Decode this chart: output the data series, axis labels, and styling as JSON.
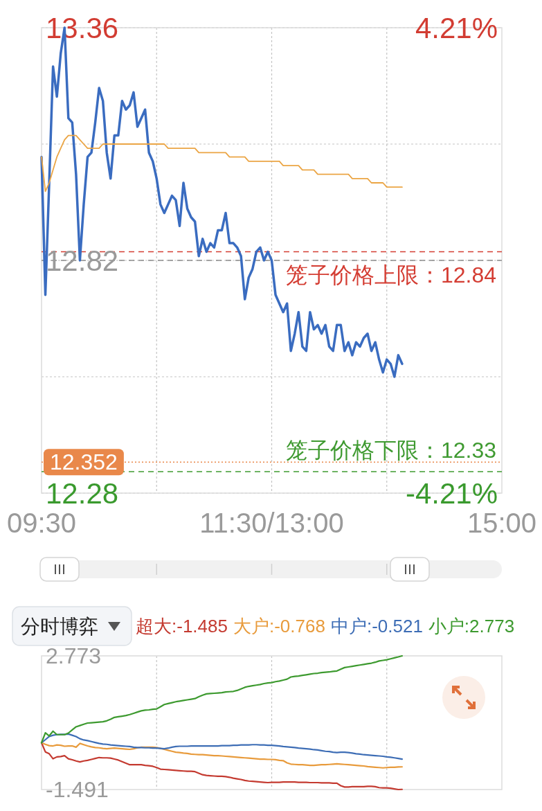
{
  "chart_data": [
    {
      "type": "line",
      "categories": [
        "09:30",
        null,
        null,
        null,
        null,
        null,
        null,
        null,
        null,
        null,
        null,
        null,
        null,
        null,
        null,
        null,
        null,
        null,
        null,
        null,
        null,
        null,
        null,
        null,
        null,
        null,
        null,
        null,
        null,
        null,
        null,
        null,
        null,
        null,
        null,
        null,
        null,
        null,
        null,
        null,
        null,
        null,
        null,
        null,
        null,
        null,
        null,
        null,
        null,
        null,
        null,
        null,
        null,
        null,
        null,
        null,
        null,
        null,
        null,
        null,
        "11:30/13:00",
        null,
        null,
        null,
        null,
        null,
        null,
        null,
        null,
        null,
        null,
        null,
        null,
        null,
        null,
        null,
        null,
        null,
        null,
        null,
        null,
        null,
        null,
        null,
        null,
        null,
        null,
        null,
        null,
        null,
        null,
        null,
        null,
        null,
        null,
        null,
        null,
        null,
        null,
        null,
        null,
        null,
        null,
        null,
        null,
        null,
        null,
        null,
        null,
        null,
        null,
        null,
        null,
        null,
        null,
        null,
        null,
        null,
        null,
        null,
        "15:00"
      ],
      "series": [
        {
          "color": "#3a6cc0",
          "values": [
            13.06,
            12.74,
            13.0,
            13.27,
            13.2,
            13.3,
            13.36,
            13.15,
            13.14,
            13.02,
            12.82,
            12.95,
            13.06,
            13.07,
            13.14,
            13.22,
            13.19,
            13.07,
            13.01,
            13.11,
            13.11,
            13.19,
            13.17,
            13.18,
            13.21,
            13.13,
            13.15,
            13.17,
            13.07,
            13.05,
            13.01,
            12.95,
            12.93,
            12.95,
            12.97,
            12.96,
            12.9,
            13.0,
            12.94,
            12.92,
            12.91,
            12.83,
            12.87,
            12.84,
            12.86,
            12.85,
            12.89,
            12.89,
            12.93,
            12.86,
            12.86,
            12.85,
            12.83,
            12.73,
            12.78,
            12.8,
            12.84,
            12.85,
            12.82,
            12.84,
            12.82,
            12.74,
            12.72,
            12.7,
            12.72,
            12.61,
            12.65,
            12.7,
            12.62,
            12.61,
            12.7,
            12.66,
            12.67,
            12.65,
            12.67,
            12.62,
            12.61,
            12.67,
            12.67,
            12.61,
            12.63,
            12.6,
            12.63,
            12.62,
            12.64,
            12.65,
            12.61,
            12.63,
            12.59,
            12.56,
            12.59,
            12.58,
            12.55,
            12.6,
            12.58,
            null,
            null,
            null,
            null,
            null,
            null,
            null,
            null,
            null,
            null,
            null,
            null,
            null,
            null,
            null,
            null,
            null,
            null,
            null,
            null,
            null,
            null,
            null,
            null,
            null,
            null
          ]
        },
        {
          "color": "#eba544",
          "values": [
            13.06,
            12.98,
            13.0,
            13.03,
            13.06,
            13.08,
            13.1,
            13.11,
            13.11,
            13.11,
            13.1,
            13.09,
            13.08,
            13.08,
            13.08,
            13.08,
            13.09,
            13.09,
            13.09,
            13.09,
            13.09,
            13.09,
            13.09,
            13.09,
            13.09,
            13.09,
            13.09,
            13.09,
            13.09,
            13.09,
            13.09,
            13.09,
            13.09,
            13.08,
            13.08,
            13.08,
            13.08,
            13.08,
            13.08,
            13.08,
            13.08,
            13.07,
            13.07,
            13.07,
            13.07,
            13.07,
            13.07,
            13.07,
            13.07,
            13.06,
            13.06,
            13.06,
            13.06,
            13.06,
            13.05,
            13.05,
            13.05,
            13.05,
            13.05,
            13.05,
            13.05,
            13.05,
            13.05,
            13.04,
            13.04,
            13.04,
            13.04,
            13.04,
            13.03,
            13.03,
            13.03,
            13.03,
            13.02,
            13.02,
            13.02,
            13.02,
            13.02,
            13.02,
            13.02,
            13.02,
            13.02,
            13.01,
            13.01,
            13.01,
            13.01,
            13.01,
            13.0,
            13.0,
            13.0,
            13.0,
            12.99,
            12.99,
            12.99,
            12.99,
            12.99,
            null,
            null,
            null,
            null,
            null,
            null,
            null,
            null,
            null,
            null,
            null,
            null,
            null,
            null,
            null,
            null,
            null,
            null,
            null,
            null,
            null,
            null,
            null,
            null,
            null,
            null
          ]
        }
      ],
      "ylim": [
        12.28,
        13.36
      ],
      "yticks": [
        13.36,
        {
          "value": 13.09,
          "label": null
        },
        12.82,
        {
          "value": 12.55,
          "label": null
        },
        12.28
      ],
      "y2lim": [
        -4.21,
        4.21
      ],
      "y2ticks": [
        {
          "value": 4.21,
          "label": "4.21%"
        },
        {
          "value": -4.21,
          "label": "-4.21%"
        }
      ],
      "grid": true,
      "ref_lines": [
        {
          "axis": "y",
          "value": 12.84,
          "label": "笼子价格上限：12.84",
          "color": "#d43d33",
          "line_style": "dashed"
        },
        {
          "axis": "y",
          "value": 12.82,
          "color": "#8c8c8c",
          "line_style": "dashed"
        },
        {
          "axis": "y",
          "value": 12.352,
          "label": "12.352",
          "color": "#e9884a",
          "line_style": "dotted"
        },
        {
          "axis": "y",
          "value": 12.33,
          "label": "笼子价格下限：12.33",
          "color": "#3f9a31",
          "line_style": "dashed"
        }
      ]
    },
    {
      "type": "line",
      "title": "分时博弈",
      "categories": [
        null,
        null,
        null,
        null,
        null,
        null,
        null,
        null,
        null,
        null,
        null,
        null,
        null,
        null,
        null,
        null,
        null,
        null,
        null,
        null,
        null,
        null,
        null,
        null,
        null,
        null,
        null,
        null,
        null,
        null,
        null,
        null,
        null,
        null,
        null,
        null,
        null,
        null,
        null,
        null,
        null,
        null,
        null,
        null,
        null,
        null,
        null,
        null,
        null,
        null,
        null,
        null,
        null,
        null,
        null,
        null,
        null,
        null,
        null,
        null,
        null,
        null,
        null,
        null,
        null,
        null,
        null,
        null,
        null,
        null,
        null,
        null,
        null,
        null,
        null,
        null,
        null,
        null,
        null,
        null,
        null,
        null,
        null,
        null,
        null,
        null,
        null,
        null,
        null,
        null,
        null,
        null,
        null,
        null,
        null,
        null,
        null,
        null,
        null,
        null,
        null,
        null,
        null,
        null,
        null,
        null,
        null,
        null,
        null,
        null,
        null,
        null,
        null,
        null,
        null,
        null,
        null,
        null,
        null,
        null,
        null
      ],
      "series": [
        {
          "name": "超大:-1.485",
          "color": "#c43a30",
          "values": [
            0,
            -0.29,
            -0.35,
            -0.51,
            -0.45,
            -0.44,
            -0.41,
            -0.51,
            -0.54,
            -0.58,
            -0.61,
            -0.58,
            -0.56,
            -0.53,
            -0.5,
            -0.47,
            -0.48,
            -0.48,
            -0.49,
            -0.52,
            -0.55,
            -0.6,
            -0.65,
            -0.7,
            -0.7,
            -0.7,
            -0.7,
            -0.72,
            -0.73,
            -0.75,
            -0.79,
            -0.84,
            -0.85,
            -0.86,
            -0.87,
            -0.88,
            -0.89,
            -0.9,
            -0.91,
            -0.91,
            -0.92,
            -0.97,
            -1.02,
            -1.04,
            -1.05,
            -1.06,
            -1.07,
            -1.07,
            -1.08,
            -1.1,
            -1.13,
            -1.15,
            -1.17,
            -1.2,
            -1.22,
            -1.23,
            -1.24,
            -1.25,
            -1.26,
            -1.27,
            -1.26,
            -1.26,
            -1.26,
            -1.25,
            -1.25,
            -1.25,
            -1.25,
            -1.26,
            -1.26,
            -1.26,
            -1.27,
            -1.27,
            -1.27,
            -1.28,
            -1.28,
            -1.28,
            -1.29,
            -1.29,
            -1.37,
            -1.41,
            -1.41,
            -1.4,
            -1.4,
            -1.4,
            -1.4,
            -1.39,
            -1.39,
            -1.4,
            -1.43,
            -1.44,
            -1.44,
            -1.45,
            -1.47,
            -1.491,
            -1.485,
            null,
            null,
            null,
            null,
            null,
            null,
            null,
            null,
            null,
            null,
            null,
            null,
            null,
            null,
            null,
            null,
            null,
            null,
            null,
            null,
            null,
            null,
            null,
            null,
            null,
            null
          ]
        },
        {
          "name": "大户:-0.768",
          "color": "#e89b3c",
          "values": [
            0,
            -0.05,
            -0.09,
            -0.1,
            -0.07,
            -0.08,
            -0.11,
            -0.1,
            -0.1,
            -0.14,
            -0.02,
            -0.06,
            -0.1,
            -0.13,
            -0.15,
            -0.16,
            -0.18,
            -0.19,
            -0.18,
            -0.17,
            -0.18,
            -0.19,
            -0.2,
            -0.21,
            -0.19,
            -0.16,
            -0.14,
            -0.14,
            -0.14,
            -0.14,
            -0.15,
            -0.18,
            -0.21,
            -0.24,
            -0.27,
            -0.3,
            -0.31,
            -0.33,
            -0.34,
            -0.36,
            -0.37,
            -0.38,
            -0.38,
            -0.39,
            -0.4,
            -0.41,
            -0.41,
            -0.42,
            -0.43,
            -0.44,
            -0.45,
            -0.46,
            -0.47,
            -0.48,
            -0.49,
            -0.5,
            -0.51,
            -0.52,
            -0.52,
            -0.53,
            -0.53,
            -0.54,
            -0.56,
            -0.57,
            -0.64,
            -0.68,
            -0.69,
            -0.7,
            -0.7,
            -0.71,
            -0.72,
            -0.72,
            -0.71,
            -0.7,
            -0.7,
            -0.69,
            -0.68,
            -0.67,
            -0.68,
            -0.69,
            -0.7,
            -0.71,
            -0.72,
            -0.73,
            -0.74,
            -0.76,
            -0.77,
            -0.78,
            -0.79,
            -0.8,
            -0.79,
            -0.78,
            -0.78,
            -0.77,
            -0.768,
            null,
            null,
            null,
            null,
            null,
            null,
            null,
            null,
            null,
            null,
            null,
            null,
            null,
            null,
            null,
            null,
            null,
            null,
            null,
            null,
            null,
            null,
            null,
            null,
            null,
            null
          ]
        },
        {
          "name": "中户:-0.521",
          "color": "#3d6db5",
          "values": [
            0,
            0.1,
            0.2,
            0.24,
            0.26,
            0.27,
            0.27,
            0.28,
            0.24,
            0.2,
            0.13,
            0.09,
            0.07,
            0.04,
            0.01,
            -0.02,
            -0.04,
            -0.05,
            -0.07,
            -0.08,
            -0.09,
            -0.1,
            -0.11,
            -0.12,
            -0.14,
            -0.15,
            -0.15,
            -0.16,
            -0.16,
            -0.17,
            -0.17,
            -0.18,
            -0.19,
            -0.17,
            -0.14,
            -0.12,
            -0.11,
            -0.11,
            -0.11,
            -0.1,
            -0.1,
            -0.1,
            -0.1,
            -0.1,
            -0.1,
            -0.1,
            -0.1,
            -0.09,
            -0.09,
            -0.09,
            -0.08,
            -0.08,
            -0.07,
            -0.07,
            -0.07,
            -0.06,
            -0.06,
            -0.07,
            -0.07,
            -0.08,
            -0.08,
            -0.09,
            -0.1,
            -0.12,
            -0.13,
            -0.14,
            -0.15,
            -0.17,
            -0.18,
            -0.19,
            -0.2,
            -0.22,
            -0.23,
            -0.25,
            -0.27,
            -0.28,
            -0.3,
            -0.31,
            -0.3,
            -0.3,
            -0.31,
            -0.33,
            -0.35,
            -0.36,
            -0.38,
            -0.39,
            -0.4,
            -0.41,
            -0.42,
            -0.43,
            -0.45,
            -0.46,
            -0.48,
            -0.5,
            -0.521,
            null,
            null,
            null,
            null,
            null,
            null,
            null,
            null,
            null,
            null,
            null,
            null,
            null,
            null,
            null,
            null,
            null,
            null,
            null,
            null,
            null,
            null,
            null,
            null,
            null,
            null
          ]
        },
        {
          "name": "小户:2.773",
          "color": "#3d9a2f",
          "values": [
            0,
            0.32,
            0.22,
            0.37,
            0.26,
            0.26,
            0.26,
            0.31,
            0.41,
            0.51,
            0.55,
            0.59,
            0.63,
            0.64,
            0.65,
            0.66,
            0.67,
            0.7,
            0.75,
            0.81,
            0.83,
            0.85,
            0.87,
            0.9,
            0.94,
            0.98,
            1.02,
            1.04,
            1.05,
            1.07,
            1.08,
            1.15,
            1.22,
            1.25,
            1.28,
            1.31,
            1.33,
            1.35,
            1.37,
            1.39,
            1.41,
            1.47,
            1.52,
            1.56,
            1.57,
            1.58,
            1.59,
            1.6,
            1.62,
            1.63,
            1.64,
            1.67,
            1.72,
            1.77,
            1.8,
            1.82,
            1.84,
            1.86,
            1.89,
            1.91,
            1.92,
            1.95,
            1.97,
            2.0,
            2.03,
            2.1,
            2.12,
            2.13,
            2.15,
            2.17,
            2.19,
            2.21,
            2.22,
            2.24,
            2.25,
            2.26,
            2.28,
            2.29,
            2.35,
            2.4,
            2.42,
            2.44,
            2.46,
            2.48,
            2.5,
            2.52,
            2.54,
            2.57,
            2.61,
            2.63,
            2.65,
            2.68,
            2.71,
            2.74,
            2.773,
            null,
            null,
            null,
            null,
            null,
            null,
            null,
            null,
            null,
            null,
            null,
            null,
            null,
            null,
            null,
            null,
            null,
            null,
            null,
            null,
            null,
            null,
            null,
            null,
            null,
            null
          ]
        }
      ],
      "ylim": [
        -1.491,
        2.773
      ],
      "yticks": [
        2.773,
        -1.491
      ],
      "tick_labels": "y",
      "grid": "x",
      "legend": "top"
    }
  ]
}
